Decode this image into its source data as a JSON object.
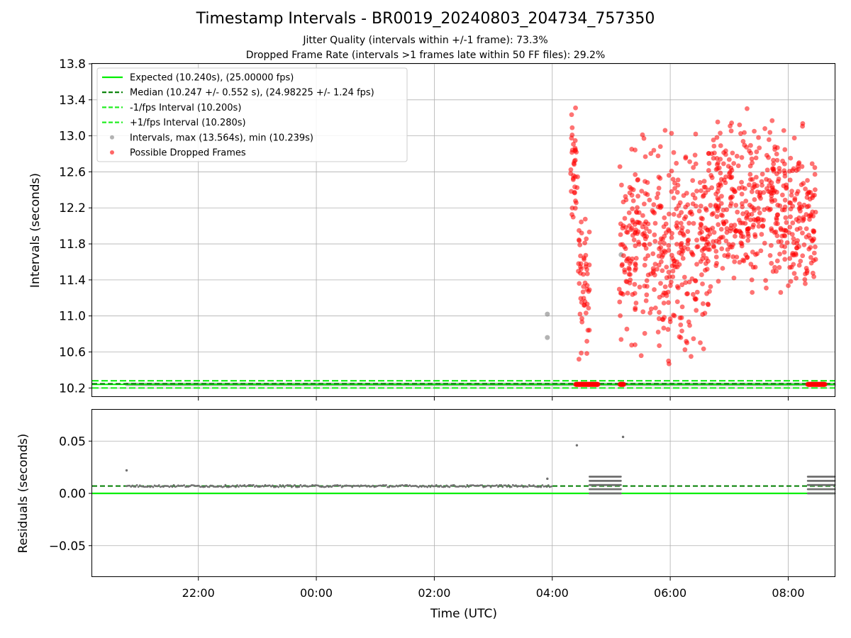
{
  "titles": {
    "main": "Timestamp Intervals - BR0019_20240803_204734_757350",
    "jitter": "Jitter Quality (intervals within +/-1 frame): 73.3%",
    "dropped": "Dropped Frame Rate (intervals >1 frames late within 50 FF files): 29.2%"
  },
  "colors": {
    "expected": "#00ee00",
    "median": "#007f00",
    "fps_interval": "#22ee22",
    "intervals": "#808080",
    "dropped": "#ff0000",
    "residual_points": "#707070"
  },
  "chart_data": [
    {
      "type": "scatter",
      "name": "intervals",
      "ylabel": "Intervals (seconds)",
      "ylim": [
        10.1,
        13.8
      ],
      "xlim_hours": [
        -3.8,
        8.8
      ],
      "yticks": [
        "10.2",
        "10.6",
        "11.0",
        "11.4",
        "11.8",
        "12.2",
        "12.6",
        "13.0",
        "13.4",
        "13.8"
      ],
      "ytick_values": [
        10.2,
        10.6,
        11.0,
        11.4,
        11.8,
        12.2,
        12.6,
        13.0,
        13.4,
        13.8
      ],
      "grid": true,
      "legend_position": "upper-left",
      "legend": [
        "Expected (10.240s), (25.00000 fps)",
        "Median (10.247 +/- 0.552 s), (24.98225 +/- 1.24 fps)",
        "-1/fps Interval (10.200s)",
        "+1/fps Interval (10.280s)",
        "Intervals, max (13.564s), min (10.239s)",
        "Possible Dropped Frames"
      ],
      "lines": {
        "expected": 10.24,
        "median": 10.247,
        "minus_fps": 10.2,
        "plus_fps": 10.28
      },
      "normal_interval": {
        "from": "20:47",
        "to": "08:48",
        "value": 10.24
      },
      "outlier_intervals": [
        {
          "time": "03:55",
          "value": 11.02
        },
        {
          "time": "03:55",
          "value": 10.76
        },
        {
          "time": "05:10",
          "value": 11.68
        }
      ],
      "dropped_clusters": [
        {
          "from": "04:18",
          "to": "04:26",
          "value_range": [
            11.6,
            13.56
          ]
        },
        {
          "from": "04:26",
          "to": "04:38",
          "value_range": [
            10.25,
            12.4
          ]
        },
        {
          "from": "05:08",
          "to": "06:42",
          "value_range": [
            10.25,
            13.37
          ]
        },
        {
          "from": "06:42",
          "to": "08:00",
          "value_range": [
            10.9,
            13.48
          ]
        },
        {
          "from": "08:00",
          "to": "08:28",
          "value_range": [
            10.8,
            13.3
          ]
        }
      ],
      "dropped_baseline": [
        {
          "from": "04:24",
          "to": "04:47",
          "value": 10.24
        },
        {
          "from": "05:09",
          "to": "05:13",
          "value": 10.24
        },
        {
          "from": "08:20",
          "to": "08:38",
          "value": 10.24
        }
      ]
    },
    {
      "type": "scatter",
      "name": "residuals",
      "ylabel": "Residuals (seconds)",
      "xlabel": "Time (UTC)",
      "ylim": [
        -0.08,
        0.08
      ],
      "yticks": [
        "−0.05",
        "0.00",
        "0.05"
      ],
      "ytick_values": [
        -0.05,
        0.0,
        0.05
      ],
      "xticks": [
        "22:00",
        "00:00",
        "02:00",
        "04:00",
        "06:00",
        "08:00"
      ],
      "xtick_hours": [
        -2,
        0,
        2,
        4,
        6,
        8
      ],
      "grid": true,
      "lines": {
        "expected": 0.0,
        "median": 0.007
      },
      "residual_baseline": {
        "from": "20:47",
        "to": "04:00",
        "value": 0.007
      },
      "residual_spikes": [
        {
          "time": "20:47",
          "value": 0.022
        },
        {
          "time": "03:55",
          "value": 0.014
        },
        {
          "time": "04:25",
          "value": 0.046
        },
        {
          "time": "05:12",
          "value": 0.054
        }
      ],
      "residual_bands": [
        {
          "from": "04:38",
          "to": "05:10",
          "value_range": [
            0.0,
            0.016
          ]
        },
        {
          "from": "08:20",
          "to": "08:48",
          "value_range": [
            0.0,
            0.016
          ]
        }
      ]
    }
  ]
}
